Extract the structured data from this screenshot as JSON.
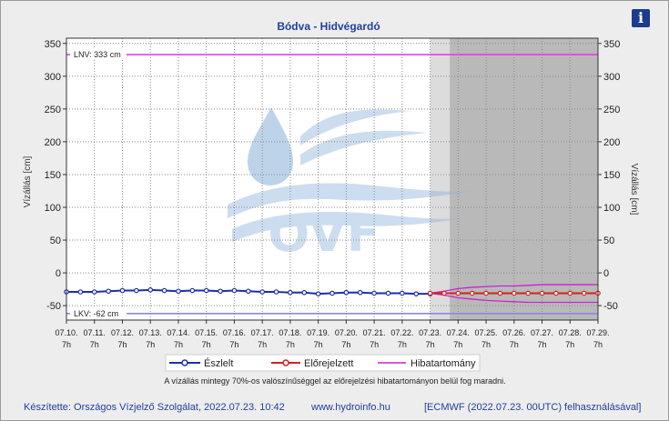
{
  "info_button": {
    "icon": "info-icon",
    "glyph": "i"
  },
  "footer": {
    "author": "Készítette: Országos Vízjelző Szolgálat, 2022.07.23. 10:42",
    "website": "www.hydroinfo.hu",
    "model": "[ECMWF (2022.07.23. 00UTC) felhasználásával]"
  },
  "chart_data": {
    "type": "line",
    "title": "Bódva - Hidvégardó",
    "ylabel_left": "Vízállás [cm]",
    "ylabel_right": "Vízállás [cm]",
    "ylim": [
      -72,
      358
    ],
    "yticks": [
      350,
      300,
      250,
      200,
      150,
      100,
      50,
      0,
      -50
    ],
    "xrange": [
      0,
      19
    ],
    "xtick_labels": [
      "07.10.",
      "07.11.",
      "07.12.",
      "07.13.",
      "07.14.",
      "07.15.",
      "07.16.",
      "07.17.",
      "07.18.",
      "07.19.",
      "07.20.",
      "07.21.",
      "07.22.",
      "07.23.",
      "07.24.",
      "07.25.",
      "07.26.",
      "07.27.",
      "07.28.",
      "07.29."
    ],
    "xtick_hour": "7h",
    "forecast_start": 13,
    "shaded_start": 13.7,
    "hlines": [
      {
        "label": "LNV: 333 cm",
        "value": 333,
        "color": "#e040e0"
      },
      {
        "label": "LKV: -62 cm",
        "value": -62,
        "color": "#8888ee"
      }
    ],
    "watermark": "OVF",
    "series": [
      {
        "name": "Észlelt",
        "color": "#1c2fa8",
        "x": [
          0,
          0.5,
          1,
          1.5,
          2,
          2.5,
          3,
          3.5,
          4,
          4.5,
          5,
          5.5,
          6,
          6.5,
          7,
          7.5,
          8,
          8.5,
          9,
          9.5,
          10,
          10.5,
          11,
          11.5,
          12,
          12.5,
          13
        ],
        "y": [
          -29,
          -29,
          -29,
          -28,
          -27,
          -27,
          -26,
          -27,
          -28,
          -27,
          -27,
          -28,
          -27,
          -28,
          -29,
          -29,
          -30,
          -30,
          -32,
          -31,
          -30,
          -30,
          -31,
          -31,
          -31,
          -32,
          -32
        ]
      },
      {
        "name": "Előrejelzett",
        "color": "#d42020",
        "x": [
          13,
          13.5,
          14,
          14.5,
          15,
          15.5,
          16,
          16.5,
          17,
          17.5,
          18,
          18.5,
          19
        ],
        "y": [
          -31,
          -31,
          -31,
          -31,
          -31,
          -31,
          -31,
          -31,
          -31,
          -31,
          -31,
          -31,
          -31
        ]
      },
      {
        "name": "Hibatartomány",
        "color": "#cc22cc",
        "x": [
          13,
          13.5,
          14,
          14.5,
          15,
          15.5,
          16,
          16.5,
          17,
          17.5,
          18,
          18.5,
          19
        ],
        "upper": [
          -31,
          -28,
          -24,
          -22,
          -21,
          -20,
          -20,
          -19,
          -18,
          -18,
          -18,
          -18,
          -18
        ],
        "lower": [
          -31,
          -34,
          -38,
          -40,
          -42,
          -43,
          -44,
          -45,
          -45,
          -45,
          -45,
          -45,
          -45
        ]
      }
    ],
    "legend": [
      "Észlelt",
      "Előrejelzett",
      "Hibatartomány"
    ],
    "legend_position": "bottom-center",
    "note": "A vízállás mintegy 70%-os valószínűséggel az előrejelzési hibatartományon belül fog maradni."
  }
}
